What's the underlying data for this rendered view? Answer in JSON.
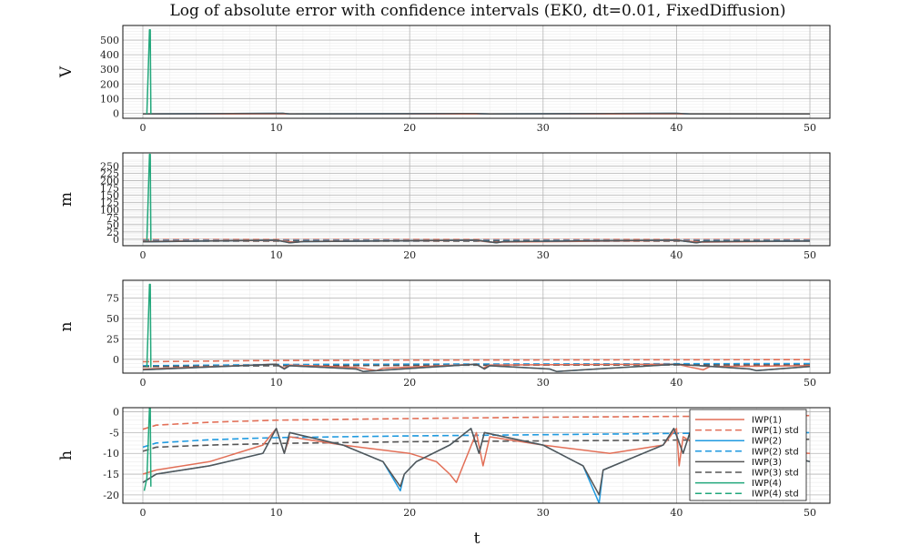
{
  "chart_data": {
    "type": "line",
    "title": "Log of absolute error with confidence intervals (EK0, dt=0.01, FixedDiffusion)",
    "xlabel": "t",
    "xlim": [
      -1.5,
      51.5
    ],
    "xticks": [
      0,
      10,
      20,
      30,
      40,
      50
    ],
    "grid": true,
    "legend": "bottom-right of last panel",
    "legend_entries": [
      {
        "name": "IWP(1)",
        "color": "#e26f57",
        "dash": false
      },
      {
        "name": "IWP(1) std",
        "color": "#e26f57",
        "dash": true
      },
      {
        "name": "IWP(2)",
        "color": "#1f9ae0",
        "dash": false
      },
      {
        "name": "IWP(2) std",
        "color": "#1f9ae0",
        "dash": true
      },
      {
        "name": "IWP(3)",
        "color": "#555555",
        "dash": false
      },
      {
        "name": "IWP(3) std",
        "color": "#555555",
        "dash": true
      },
      {
        "name": "IWP(4)",
        "color": "#22a77b",
        "dash": false
      },
      {
        "name": "IWP(4) std",
        "color": "#22a77b",
        "dash": true
      }
    ],
    "panels": [
      {
        "ylabel": "V",
        "ylim": [
          -35,
          600
        ],
        "yticks": [
          0,
          100,
          200,
          300,
          400,
          500
        ],
        "series": [
          {
            "name": "IWP(1)",
            "color": "#e26f57",
            "dash": false,
            "x": [
              0,
              10,
              20,
              30,
              40,
              50
            ],
            "y": [
              -6,
              -5,
              -6,
              -5,
              -5,
              -5
            ]
          },
          {
            "name": "IWP(2)",
            "color": "#1f9ae0",
            "dash": false,
            "x": [
              0,
              10.5,
              11,
              25,
              26,
              40,
              41,
              50
            ],
            "y": [
              -6,
              -1,
              -6,
              -2,
              -6,
              -1,
              -6,
              -5
            ]
          },
          {
            "name": "IWP(3)",
            "color": "#555555",
            "dash": false,
            "x": [
              0,
              10.5,
              11,
              25,
              26,
              40,
              41,
              50
            ],
            "y": [
              -6,
              -1,
              -6,
              -2,
              -6,
              -1,
              -6,
              -5
            ]
          },
          {
            "name": "IWP(4)",
            "color": "#22a77b",
            "dash": false,
            "x": [
              0.3,
              0.5,
              0.55,
              0.6
            ],
            "y": [
              -5,
              570,
              570,
              -5
            ]
          }
        ]
      },
      {
        "ylabel": "m",
        "ylim": [
          -22,
          295
        ],
        "yticks": [
          0,
          25,
          50,
          75,
          100,
          125,
          150,
          175,
          200,
          225,
          250
        ],
        "series": [
          {
            "name": "IWP(1) std",
            "color": "#e26f57",
            "dash": true,
            "x": [
              0,
              50
            ],
            "y": [
              -1,
              -1
            ]
          },
          {
            "name": "IWP(2) std",
            "color": "#1f9ae0",
            "dash": true,
            "x": [
              0,
              50
            ],
            "y": [
              -4,
              -4
            ]
          },
          {
            "name": "IWP(3) std",
            "color": "#555555",
            "dash": true,
            "x": [
              0,
              50
            ],
            "y": [
              -6,
              -6
            ]
          },
          {
            "name": "IWP(1)",
            "color": "#e26f57",
            "dash": false,
            "x": [
              0,
              10,
              11.5,
              12,
              25,
              26,
              40,
              42,
              50
            ],
            "y": [
              -7,
              -4,
              -10,
              -7,
              -4,
              -10,
              -4,
              -10,
              -6
            ]
          },
          {
            "name": "IWP(2)",
            "color": "#1f9ae0",
            "dash": false,
            "x": [
              0,
              10,
              11,
              12,
              25,
              26.5,
              27,
              40,
              41.5,
              42,
              50
            ],
            "y": [
              -9,
              -3,
              -12,
              -8,
              -3,
              -12,
              -8,
              -3,
              -12,
              -8,
              -6
            ]
          },
          {
            "name": "IWP(3)",
            "color": "#555555",
            "dash": false,
            "x": [
              0,
              10,
              11,
              12,
              25,
              26.5,
              27,
              40,
              41.5,
              42,
              50
            ],
            "y": [
              -9,
              -3,
              -12,
              -8,
              -3,
              -12,
              -8,
              -3,
              -12,
              -8,
              -6
            ]
          },
          {
            "name": "IWP(4)",
            "color": "#22a77b",
            "dash": false,
            "x": [
              0.3,
              0.5,
              0.55,
              0.6
            ],
            "y": [
              -5,
              290,
              290,
              -5
            ]
          }
        ]
      },
      {
        "ylabel": "n",
        "ylim": [
          -17,
          97
        ],
        "yticks": [
          0,
          25,
          50,
          75
        ],
        "series": [
          {
            "name": "IWP(1) std",
            "color": "#e26f57",
            "dash": true,
            "x": [
              0,
              10,
              20,
              30,
              40,
              50
            ],
            "y": [
              -3,
              -1.5,
              -1,
              -0.8,
              -0.6,
              -0.5
            ]
          },
          {
            "name": "IWP(2) std",
            "color": "#1f9ae0",
            "dash": true,
            "x": [
              0,
              10,
              20,
              30,
              40,
              50
            ],
            "y": [
              -8,
              -6.5,
              -6,
              -5.7,
              -5.5,
              -5.3
            ]
          },
          {
            "name": "IWP(3) std",
            "color": "#555555",
            "dash": true,
            "x": [
              0,
              10,
              20,
              30,
              40,
              50
            ],
            "y": [
              -9,
              -8,
              -7.5,
              -7.2,
              -7,
              -6.9
            ]
          },
          {
            "name": "IWP(1)",
            "color": "#e26f57",
            "dash": false,
            "x": [
              0,
              10,
              10.6,
              11,
              16,
              17.5,
              18,
              25,
              25.5,
              26,
              40,
              42,
              42.5,
              50
            ],
            "y": [
              -12,
              -6,
              -11,
              -7,
              -10,
              -14,
              -11,
              -6,
              -11,
              -7,
              -6,
              -13,
              -9,
              -8
            ]
          },
          {
            "name": "IWP(2)",
            "color": "#1f9ae0",
            "dash": false,
            "x": [
              0,
              10,
              10.6,
              11,
              16,
              16.5,
              25,
              25.6,
              26,
              30.5,
              31,
              40,
              45.5,
              46,
              50
            ],
            "y": [
              -13,
              -6,
              -12,
              -8,
              -12,
              -15,
              -6,
              -12,
              -8,
              -12,
              -15,
              -6,
              -12,
              -14,
              -9
            ]
          },
          {
            "name": "IWP(3)",
            "color": "#555555",
            "dash": false,
            "x": [
              0,
              10,
              10.6,
              11,
              16,
              16.5,
              25,
              25.6,
              26,
              30.5,
              31,
              40,
              45.5,
              46,
              50
            ],
            "y": [
              -13,
              -6,
              -12,
              -8,
              -12,
              -15,
              -6,
              -12,
              -8,
              -12,
              -15,
              -6,
              -12,
              -14,
              -9
            ]
          },
          {
            "name": "IWP(4)",
            "color": "#22a77b",
            "dash": false,
            "x": [
              0.3,
              0.5,
              0.55,
              0.6
            ],
            "y": [
              -10,
              92,
              92,
              -10
            ]
          }
        ]
      },
      {
        "ylabel": "h",
        "ylim": [
          -22,
          1
        ],
        "yticks": [
          0,
          -5,
          -10,
          -15,
          -20
        ],
        "series": [
          {
            "name": "IWP(1) std",
            "color": "#e26f57",
            "dash": true,
            "x": [
              0,
              1,
              5,
              10,
              20,
              30,
              40,
              50
            ],
            "y": [
              -4.2,
              -3.2,
              -2.5,
              -2,
              -1.6,
              -1.3,
              -1.1,
              -0.9
            ]
          },
          {
            "name": "IWP(2) std",
            "color": "#1f9ae0",
            "dash": true,
            "x": [
              0,
              1,
              5,
              10,
              20,
              30,
              40,
              50
            ],
            "y": [
              -8.5,
              -7.5,
              -6.7,
              -6.2,
              -5.8,
              -5.5,
              -5.2,
              -5
            ]
          },
          {
            "name": "IWP(3) std",
            "color": "#555555",
            "dash": true,
            "x": [
              0,
              1,
              5,
              10,
              20,
              30,
              40,
              50
            ],
            "y": [
              -9.5,
              -8.5,
              -8,
              -7.6,
              -7.2,
              -7,
              -6.8,
              -6.6
            ]
          },
          {
            "name": "IWP(1)",
            "color": "#e26f57",
            "dash": false,
            "x": [
              0,
              1,
              5,
              9,
              10,
              10.6,
              11,
              15,
              20,
              22,
              23,
              23.5,
              24,
              25,
              25.5,
              26,
              30,
              35,
              39,
              40,
              40.2,
              40.5,
              41,
              45,
              50
            ],
            "y": [
              -15,
              -14,
              -12,
              -8,
              -4,
              -10,
              -6,
              -8,
              -10,
              -12,
              -15,
              -17,
              -13,
              -5,
              -13,
              -6,
              -8,
              -10,
              -8,
              -4,
              -13,
              -6,
              -7,
              -9,
              -10
            ]
          },
          {
            "name": "IWP(2)",
            "color": "#1f9ae0",
            "dash": false,
            "x": [
              0,
              1,
              5,
              9,
              10,
              10.6,
              11,
              15,
              18,
              19.3,
              19.6,
              20.5,
              23,
              24.6,
              25.2,
              25.6,
              30,
              33,
              34.2,
              34.5,
              36,
              39,
              39.8,
              40.5,
              41,
              45,
              50
            ],
            "y": [
              -17,
              -15,
              -13,
              -10,
              -4,
              -10,
              -5,
              -8,
              -12,
              -19,
              -15,
              -12,
              -8,
              -4,
              -10,
              -5,
              -8,
              -13,
              -22,
              -14,
              -12,
              -8,
              -4,
              -10,
              -5,
              -8,
              -12
            ]
          },
          {
            "name": "IWP(3)",
            "color": "#555555",
            "dash": false,
            "x": [
              0,
              1,
              5,
              9,
              10,
              10.6,
              11,
              15,
              18,
              19.3,
              19.6,
              20.5,
              23,
              24.6,
              25.2,
              25.6,
              30,
              33,
              34.2,
              34.5,
              36,
              39,
              39.8,
              40.5,
              41,
              45,
              50
            ],
            "y": [
              -17,
              -15,
              -13,
              -10,
              -4,
              -10,
              -5,
              -8,
              -12,
              -18,
              -15,
              -12,
              -8,
              -4,
              -10,
              -5,
              -8,
              -13,
              -20,
              -14,
              -12,
              -8,
              -4,
              -10,
              -5,
              -8,
              -12
            ]
          },
          {
            "name": "IWP(4)",
            "color": "#22a77b",
            "dash": false,
            "x": [
              0.1,
              0.3,
              0.5,
              0.55,
              0.6
            ],
            "y": [
              -19,
              -16,
              1,
              1,
              -18
            ]
          }
        ]
      }
    ]
  }
}
